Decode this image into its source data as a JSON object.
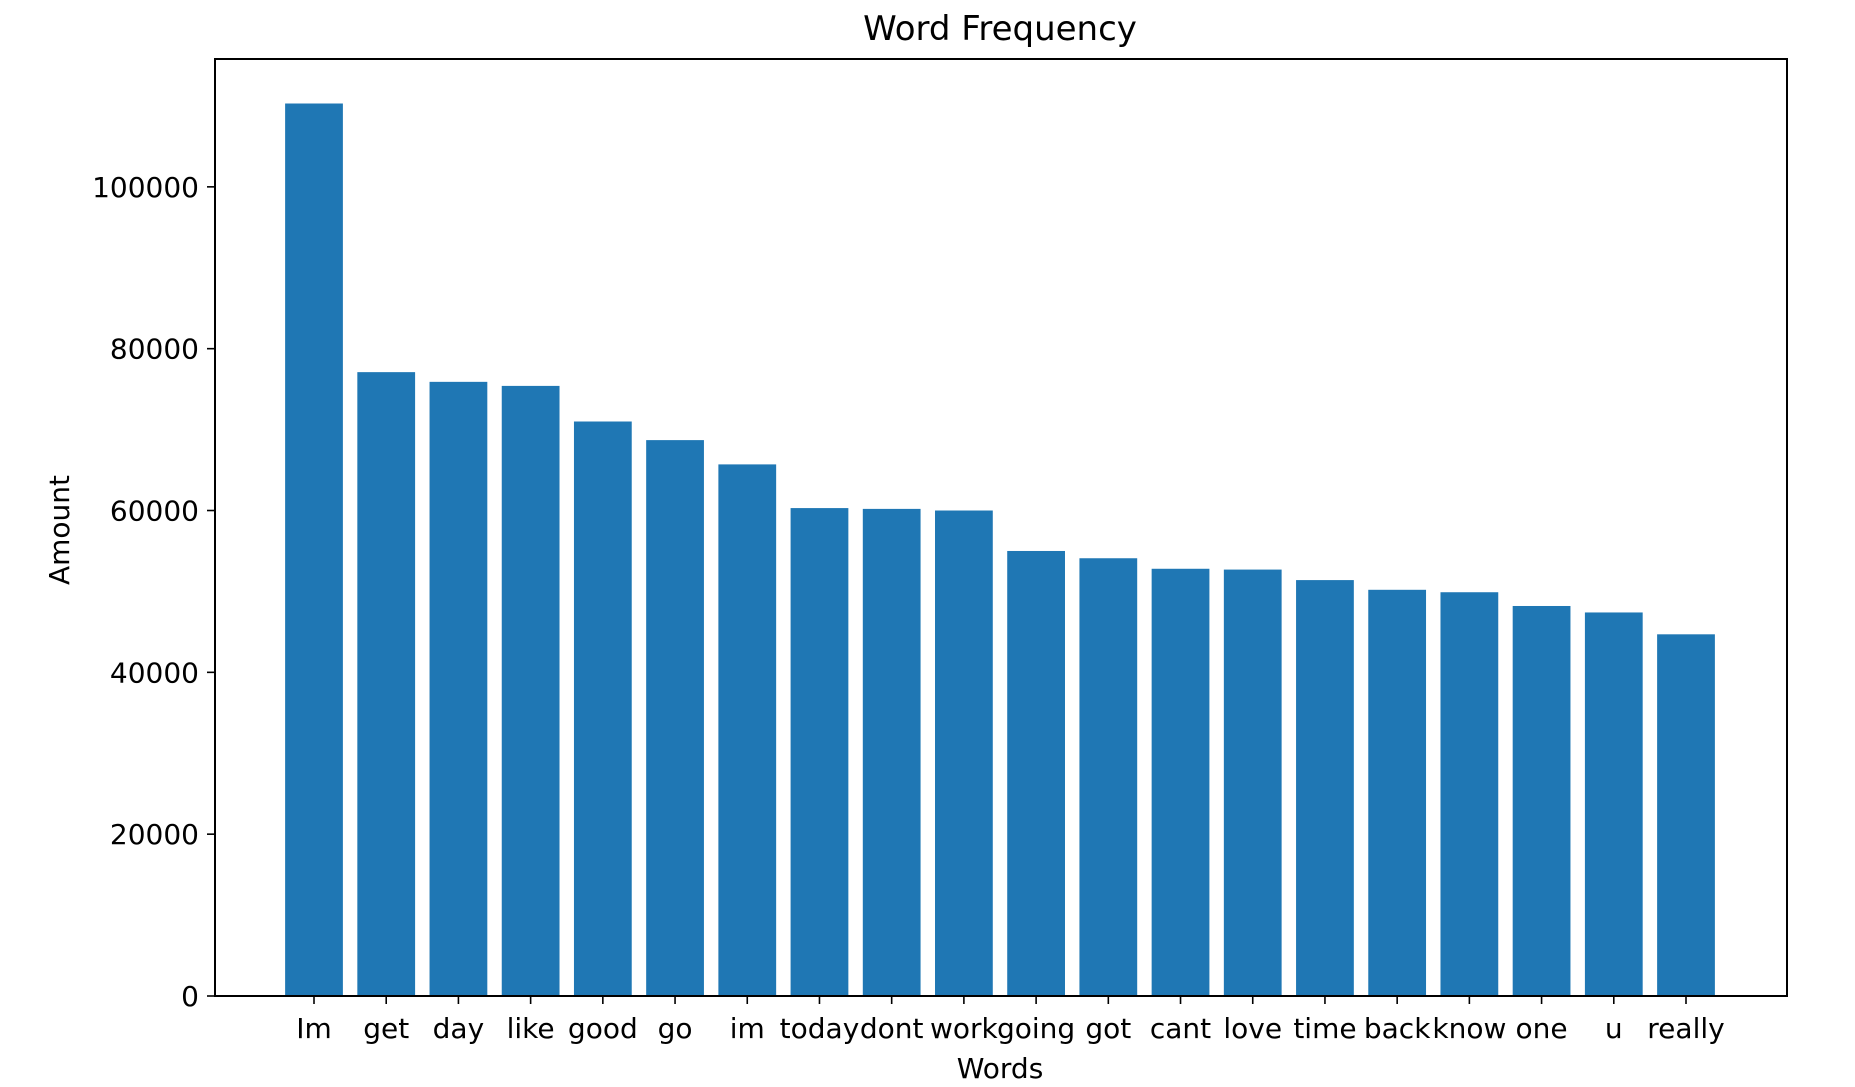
{
  "chart_data": {
    "type": "bar",
    "title": "Word Frequency",
    "xlabel": "Words",
    "ylabel": "Amount",
    "categories": [
      "Im",
      "get",
      "day",
      "like",
      "good",
      "go",
      "im",
      "today",
      "dont",
      "work",
      "going",
      "got",
      "cant",
      "love",
      "time",
      "back",
      "know",
      "one",
      "u",
      "really"
    ],
    "values": [
      110300,
      77100,
      75900,
      75400,
      71000,
      68700,
      65700,
      60300,
      60200,
      60000,
      55000,
      54100,
      52800,
      52700,
      51400,
      50200,
      49900,
      48200,
      47400,
      44700
    ],
    "ylim": [
      0,
      115800
    ],
    "yticks": [
      0,
      20000,
      40000,
      60000,
      80000,
      100000
    ],
    "ytick_labels": [
      "0",
      "20000",
      "40000",
      "60000",
      "80000",
      "100000"
    ],
    "bar_color": "#1f77b4",
    "grid": false,
    "legend": "none"
  }
}
